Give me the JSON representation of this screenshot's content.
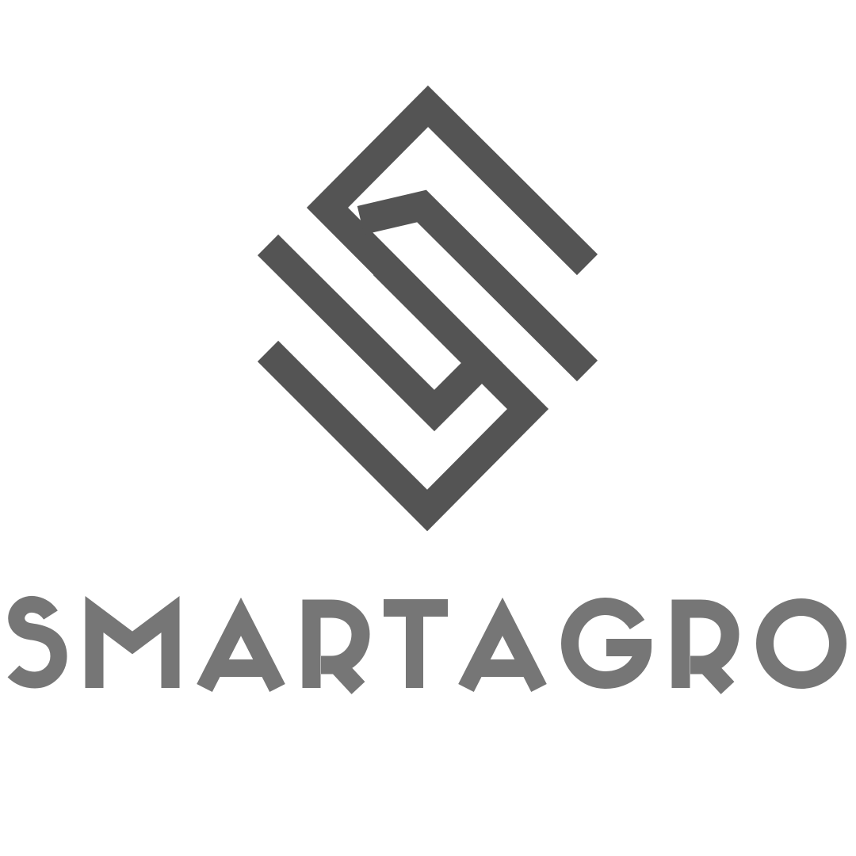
{
  "logo": {
    "name": "smartagro-logo",
    "wordmark": "SMARTAGRO",
    "mark_color": "#545454",
    "text_color": "#767676",
    "background": "#ffffff"
  }
}
